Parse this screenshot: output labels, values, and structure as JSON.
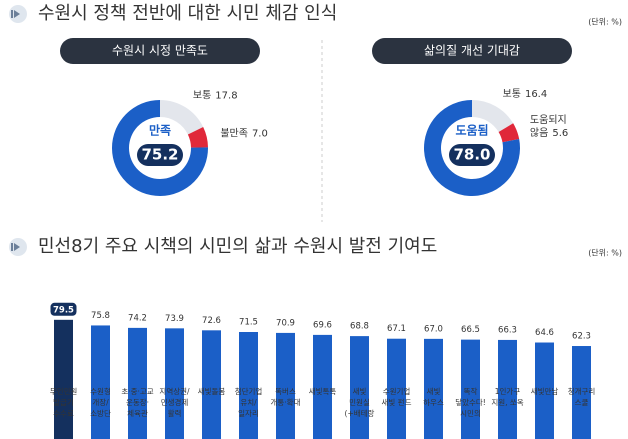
{
  "sections": [
    {
      "title": "수원시 정책 전반에 대한 시민 체감 인식",
      "unit": "(단위: %)"
    },
    {
      "title": "민선8기 주요 시책의 시민의 삶과 수원시 발전 기여도",
      "unit": "(단위: %)"
    }
  ],
  "chart_data": [
    {
      "type": "donut",
      "title": "수원시 시정 만족도",
      "categories": [
        "보통",
        "불만족",
        "만족"
      ],
      "values": [
        17.8,
        7.0,
        75.2
      ],
      "value_labels": [
        "17.8",
        "7.0",
        "75.2"
      ],
      "colors": [
        "#e3e6ec",
        "#e0283a",
        "#1b5fc7"
      ]
    },
    {
      "type": "donut",
      "title": "삶의질 개선 기대감",
      "categories": [
        "보통",
        "도움되지\n않음",
        "도움됨"
      ],
      "values": [
        16.4,
        5.6,
        78.0
      ],
      "value_labels": [
        "16.4",
        "5.6",
        "78.0"
      ],
      "colors": [
        "#e3e6ec",
        "#e0283a",
        "#1b5fc7"
      ]
    },
    {
      "type": "bar",
      "categories": [
        "무인민원\n발급기\n수수료",
        "수원형\n개장/\n소방단",
        "초·중·고교\n운동장·\n체육관",
        "지역상권/\n민생경제\n활력",
        "새빛돌봄",
        "첨단기업\n유치/\n일자리",
        "똑버스\n개통·확대",
        "새빛톡톡",
        "새빛\n민원실\n(+배테랑",
        "수원기업\n새빛 펀드",
        "새빛\n하우스",
        "똑작\n닿았수다!\n시민의",
        "1인가구\n지원, 쏘옥",
        "새빛만남",
        "청개구리\n스쿨"
      ],
      "values": [
        79.5,
        75.8,
        74.2,
        73.9,
        72.6,
        71.5,
        70.9,
        69.6,
        68.8,
        67.1,
        67.0,
        66.5,
        66.3,
        64.6,
        62.3
      ],
      "value_labels": [
        "79.5",
        "75.8",
        "74.2",
        "73.9",
        "72.6",
        "71.5",
        "70.9",
        "69.6",
        "68.8",
        "67.1",
        "67.0",
        "66.5",
        "66.3",
        "64.6",
        "62.3"
      ],
      "colors": [
        "#14305e",
        "#1b5fc7",
        "#1b5fc7",
        "#1b5fc7",
        "#1b5fc7",
        "#1b5fc7",
        "#1b5fc7",
        "#1b5fc7",
        "#1b5fc7",
        "#1b5fc7",
        "#1b5fc7",
        "#1b5fc7",
        "#1b5fc7",
        "#1b5fc7",
        "#1b5fc7"
      ],
      "ylim": [
        40,
        82
      ]
    }
  ]
}
